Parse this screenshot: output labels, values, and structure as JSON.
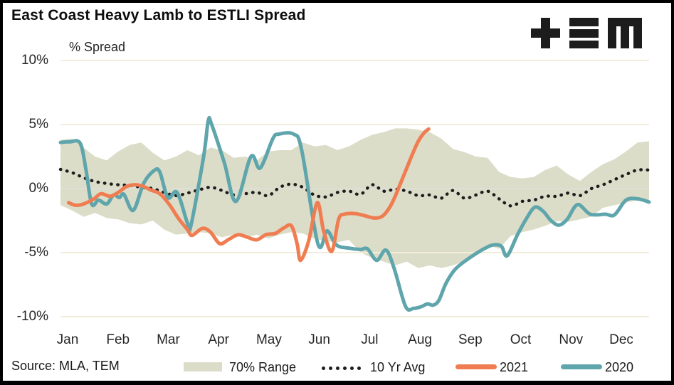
{
  "title": "East Coast Heavy Lamb to ESTLI Spread",
  "axis_note": "% Spread",
  "source": "Source: MLA, TEM",
  "logo": "TEM",
  "colors": {
    "band": "#dcddc8",
    "avg": "#1d1d1d",
    "y2021": "#ef7d51",
    "y2020": "#5fa5ac",
    "grid": "#f2edda",
    "grid_zero": "#dfdfda",
    "text": "#262626",
    "logo_ink": "#1c1c1c"
  },
  "chart_data": {
    "type": "line",
    "title": "East Coast Heavy Lamb to ESTLI Spread",
    "ylabel": "% Spread",
    "ylim": [
      -10,
      10
    ],
    "ytick_values": [
      10,
      5,
      0,
      -5,
      -10
    ],
    "ytick_labels": [
      "10%",
      "5%",
      "0%",
      "-5%",
      "-10%"
    ],
    "x_unit": "week of year (1-52)",
    "months": [
      "Jan",
      "Feb",
      "Mar",
      "Apr",
      "May",
      "Jun",
      "Jul",
      "Aug",
      "Sep",
      "Oct",
      "Nov",
      "Dec"
    ],
    "grid": "horizontal only",
    "legend_position": "bottom",
    "legend": [
      {
        "label": "70% Range",
        "swatch": "band"
      },
      {
        "label": "10 Yr Avg",
        "swatch": "dots"
      },
      {
        "label": "2021",
        "swatch": "line-2021"
      },
      {
        "label": "2020",
        "swatch": "line-2020"
      }
    ],
    "series": [
      {
        "name": "70% Range upper (%)",
        "style": "band-upper",
        "weekly_values": [
          3.8,
          3.9,
          3.2,
          2.5,
          2.2,
          2.9,
          3.4,
          3.6,
          2.8,
          2.2,
          2.5,
          3.0,
          2.6,
          3.2,
          3.0,
          2.4,
          2.5,
          2.2,
          2.9,
          3.0,
          3.0,
          3.6,
          3.3,
          3.4,
          3.0,
          3.3,
          3.8,
          4.2,
          4.4,
          4.7,
          4.7,
          4.6,
          4.4,
          3.9,
          3.1,
          2.85,
          2.5,
          2.4,
          1.3,
          0.9,
          0.8,
          0.9,
          1.45,
          1.8,
          1.1,
          0.6,
          1.3,
          1.9,
          2.3,
          2.9,
          3.6,
          3.7
        ]
      },
      {
        "name": "70% Range lower (%)",
        "style": "band-lower",
        "weekly_values": [
          -1.3,
          -1.7,
          -2.2,
          -1.9,
          -2.3,
          -2.4,
          -2.7,
          -2.8,
          -2.5,
          -3.2,
          -3.6,
          -3.5,
          -3.4,
          -3.5,
          -3.8,
          -3.6,
          -3.8,
          -3.6,
          -3.9,
          -3.6,
          -3.4,
          -3.5,
          -3.9,
          -4.1,
          -4.2,
          -4.0,
          -5.0,
          -5.4,
          -5.7,
          -6.0,
          -5.7,
          -6.2,
          -6.0,
          -6.2,
          -6.0,
          -5.65,
          -5.2,
          -4.4,
          -4.7,
          -3.7,
          -3.4,
          -3.2,
          -2.9,
          -2.55,
          -2.6,
          -2.4,
          -2.2,
          -1.5,
          -1.3,
          -1.1,
          -0.9,
          -1.1
        ]
      },
      {
        "name": "10 Yr Avg (%)",
        "style": "dotted",
        "weekly_values": [
          1.5,
          1.25,
          0.85,
          0.55,
          0.4,
          0.3,
          0.25,
          0.1,
          0.0,
          -0.3,
          -0.55,
          -0.35,
          -0.1,
          0.1,
          -0.15,
          -0.5,
          -0.4,
          -0.3,
          -0.55,
          0.1,
          0.35,
          0.1,
          -0.5,
          -0.65,
          -0.3,
          -0.2,
          -0.45,
          0.3,
          -0.2,
          -0.05,
          -0.2,
          -0.55,
          -0.5,
          -0.75,
          -0.15,
          -0.75,
          -0.5,
          -0.2,
          -0.8,
          -1.35,
          -1.0,
          -0.9,
          -0.6,
          -0.6,
          -0.35,
          -0.55,
          0.0,
          0.3,
          0.7,
          1.1,
          1.45,
          1.45
        ]
      },
      {
        "name": "2020 (%)",
        "style": "solid-2020",
        "points_week_pct": [
          [
            1,
            3.6
          ],
          [
            1.8,
            3.65
          ],
          [
            2.7,
            3.55
          ],
          [
            3.2,
            1.5
          ],
          [
            3.7,
            -1.2
          ],
          [
            4.3,
            -0.9
          ],
          [
            5.0,
            -1.2
          ],
          [
            5.6,
            -0.5
          ],
          [
            6.1,
            -0.7
          ],
          [
            6.5,
            -0.45
          ],
          [
            7.3,
            -1.7
          ],
          [
            8.2,
            0.4
          ],
          [
            9.1,
            1.4
          ],
          [
            9.6,
            1.3
          ],
          [
            10.3,
            -0.7
          ],
          [
            11.1,
            -0.3
          ],
          [
            12.0,
            -2.7
          ],
          [
            12.3,
            -2.9
          ],
          [
            13.4,
            2.5
          ],
          [
            13.8,
            5.3
          ],
          [
            14.1,
            5.0
          ],
          [
            15.2,
            2.0
          ],
          [
            16.2,
            -1.0
          ],
          [
            17.5,
            2.5
          ],
          [
            18.3,
            1.6
          ],
          [
            19.4,
            3.9
          ],
          [
            19.9,
            4.25
          ],
          [
            21.2,
            4.25
          ],
          [
            21.9,
            3.0
          ],
          [
            23.3,
            -4.3
          ],
          [
            24.1,
            -3.3
          ],
          [
            24.9,
            -4.4
          ],
          [
            26.0,
            -4.65
          ],
          [
            27.0,
            -4.75
          ],
          [
            27.6,
            -4.7
          ],
          [
            28.4,
            -5.6
          ],
          [
            29.2,
            -4.8
          ],
          [
            29.9,
            -6.2
          ],
          [
            30.9,
            -9.2
          ],
          [
            31.6,
            -9.35
          ],
          [
            32.3,
            -9.2
          ],
          [
            32.8,
            -9.0
          ],
          [
            33.3,
            -9.1
          ],
          [
            33.8,
            -8.7
          ],
          [
            34.4,
            -7.4
          ],
          [
            35.2,
            -6.3
          ],
          [
            36.3,
            -5.5
          ],
          [
            37.7,
            -4.7
          ],
          [
            38.5,
            -4.4
          ],
          [
            39.2,
            -4.5
          ],
          [
            39.7,
            -5.25
          ],
          [
            40.6,
            -3.6
          ],
          [
            41.4,
            -2.3
          ],
          [
            42.1,
            -1.45
          ],
          [
            42.8,
            -1.75
          ],
          [
            43.5,
            -2.5
          ],
          [
            44.2,
            -2.85
          ],
          [
            44.9,
            -2.4
          ],
          [
            45.8,
            -1.25
          ],
          [
            46.9,
            -2.0
          ],
          [
            48.2,
            -2.0
          ],
          [
            49.0,
            -2.05
          ],
          [
            50.0,
            -0.9
          ],
          [
            51.0,
            -0.8
          ],
          [
            52,
            -1.05
          ]
        ]
      },
      {
        "name": "2021 (%)",
        "style": "solid-2021",
        "points_week_pct": [
          [
            1.7,
            -1.1
          ],
          [
            2.3,
            -1.3
          ],
          [
            3.0,
            -1.2
          ],
          [
            3.9,
            -0.8
          ],
          [
            4.5,
            -0.4
          ],
          [
            5.3,
            -0.6
          ],
          [
            6.0,
            -0.3
          ],
          [
            6.7,
            0.15
          ],
          [
            7.4,
            0.3
          ],
          [
            8.1,
            0.2
          ],
          [
            8.8,
            -0.1
          ],
          [
            9.6,
            -0.4
          ],
          [
            10.4,
            -1.2
          ],
          [
            11.2,
            -2.3
          ],
          [
            12.0,
            -3.2
          ],
          [
            12.4,
            -3.65
          ],
          [
            13.3,
            -3.1
          ],
          [
            14.0,
            -3.4
          ],
          [
            14.8,
            -4.3
          ],
          [
            15.6,
            -3.95
          ],
          [
            16.4,
            -3.6
          ],
          [
            17.2,
            -3.8
          ],
          [
            18.0,
            -4.0
          ],
          [
            18.8,
            -3.6
          ],
          [
            19.6,
            -3.5
          ],
          [
            20.3,
            -3.1
          ],
          [
            21.0,
            -2.9
          ],
          [
            21.5,
            -4.3
          ],
          [
            21.8,
            -5.6
          ],
          [
            22.5,
            -4.1
          ],
          [
            23.25,
            -1.1
          ],
          [
            23.8,
            -3.3
          ],
          [
            24.5,
            -4.9
          ],
          [
            25.1,
            -2.4
          ],
          [
            25.6,
            -2.0
          ],
          [
            26.5,
            -1.95
          ],
          [
            27.3,
            -2.1
          ],
          [
            28.2,
            -2.3
          ],
          [
            28.9,
            -2.15
          ],
          [
            29.5,
            -1.5
          ],
          [
            30.0,
            -0.6
          ],
          [
            30.5,
            0.5
          ],
          [
            31.0,
            1.6
          ],
          [
            31.5,
            2.7
          ],
          [
            32.0,
            3.7
          ],
          [
            32.5,
            4.35
          ],
          [
            32.9,
            4.65
          ]
        ]
      }
    ]
  }
}
